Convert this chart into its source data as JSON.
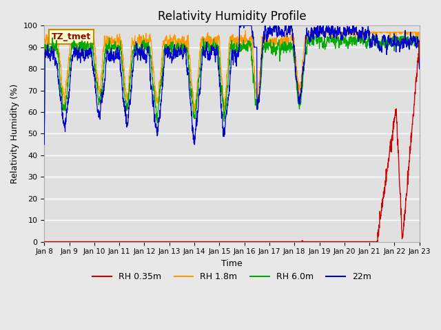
{
  "title": "Relativity Humidity Profile",
  "xlabel": "Time",
  "ylabel": "Relativity Humidity (%)",
  "ylim": [
    0,
    100
  ],
  "yticks": [
    0,
    10,
    20,
    30,
    40,
    50,
    60,
    70,
    80,
    90,
    100
  ],
  "xtick_labels": [
    "Jan 8",
    "Jan 9",
    "Jan 10",
    "Jan 11",
    "Jan 12",
    "Jan 13",
    "Jan 14",
    "Jan 15",
    "Jan 16",
    "Jan 17",
    "Jan 18",
    "Jan 19",
    "Jan 20",
    "Jan 21",
    "Jan 22",
    "Jan 23"
  ],
  "colors": {
    "rh035": "#cc0000",
    "rh18": "#ff9900",
    "rh60": "#00aa00",
    "rh22": "#0000cc"
  },
  "legend_labels": [
    "RH 0.35m",
    "RH 1.8m",
    "RH 6.0m",
    "22m"
  ],
  "annotation_box": {
    "text": "TZ_tmet",
    "facecolor": "#ffffcc",
    "edgecolor": "#cc8800",
    "fontcolor": "#990000",
    "fontsize": 9,
    "fontweight": "bold"
  },
  "fig_bg": "#e8e8e8",
  "plot_bg": "#e0e0e0",
  "grid_color": "#ffffff",
  "title_fontsize": 12,
  "n_days": 15,
  "n_pts_per_day": 144
}
